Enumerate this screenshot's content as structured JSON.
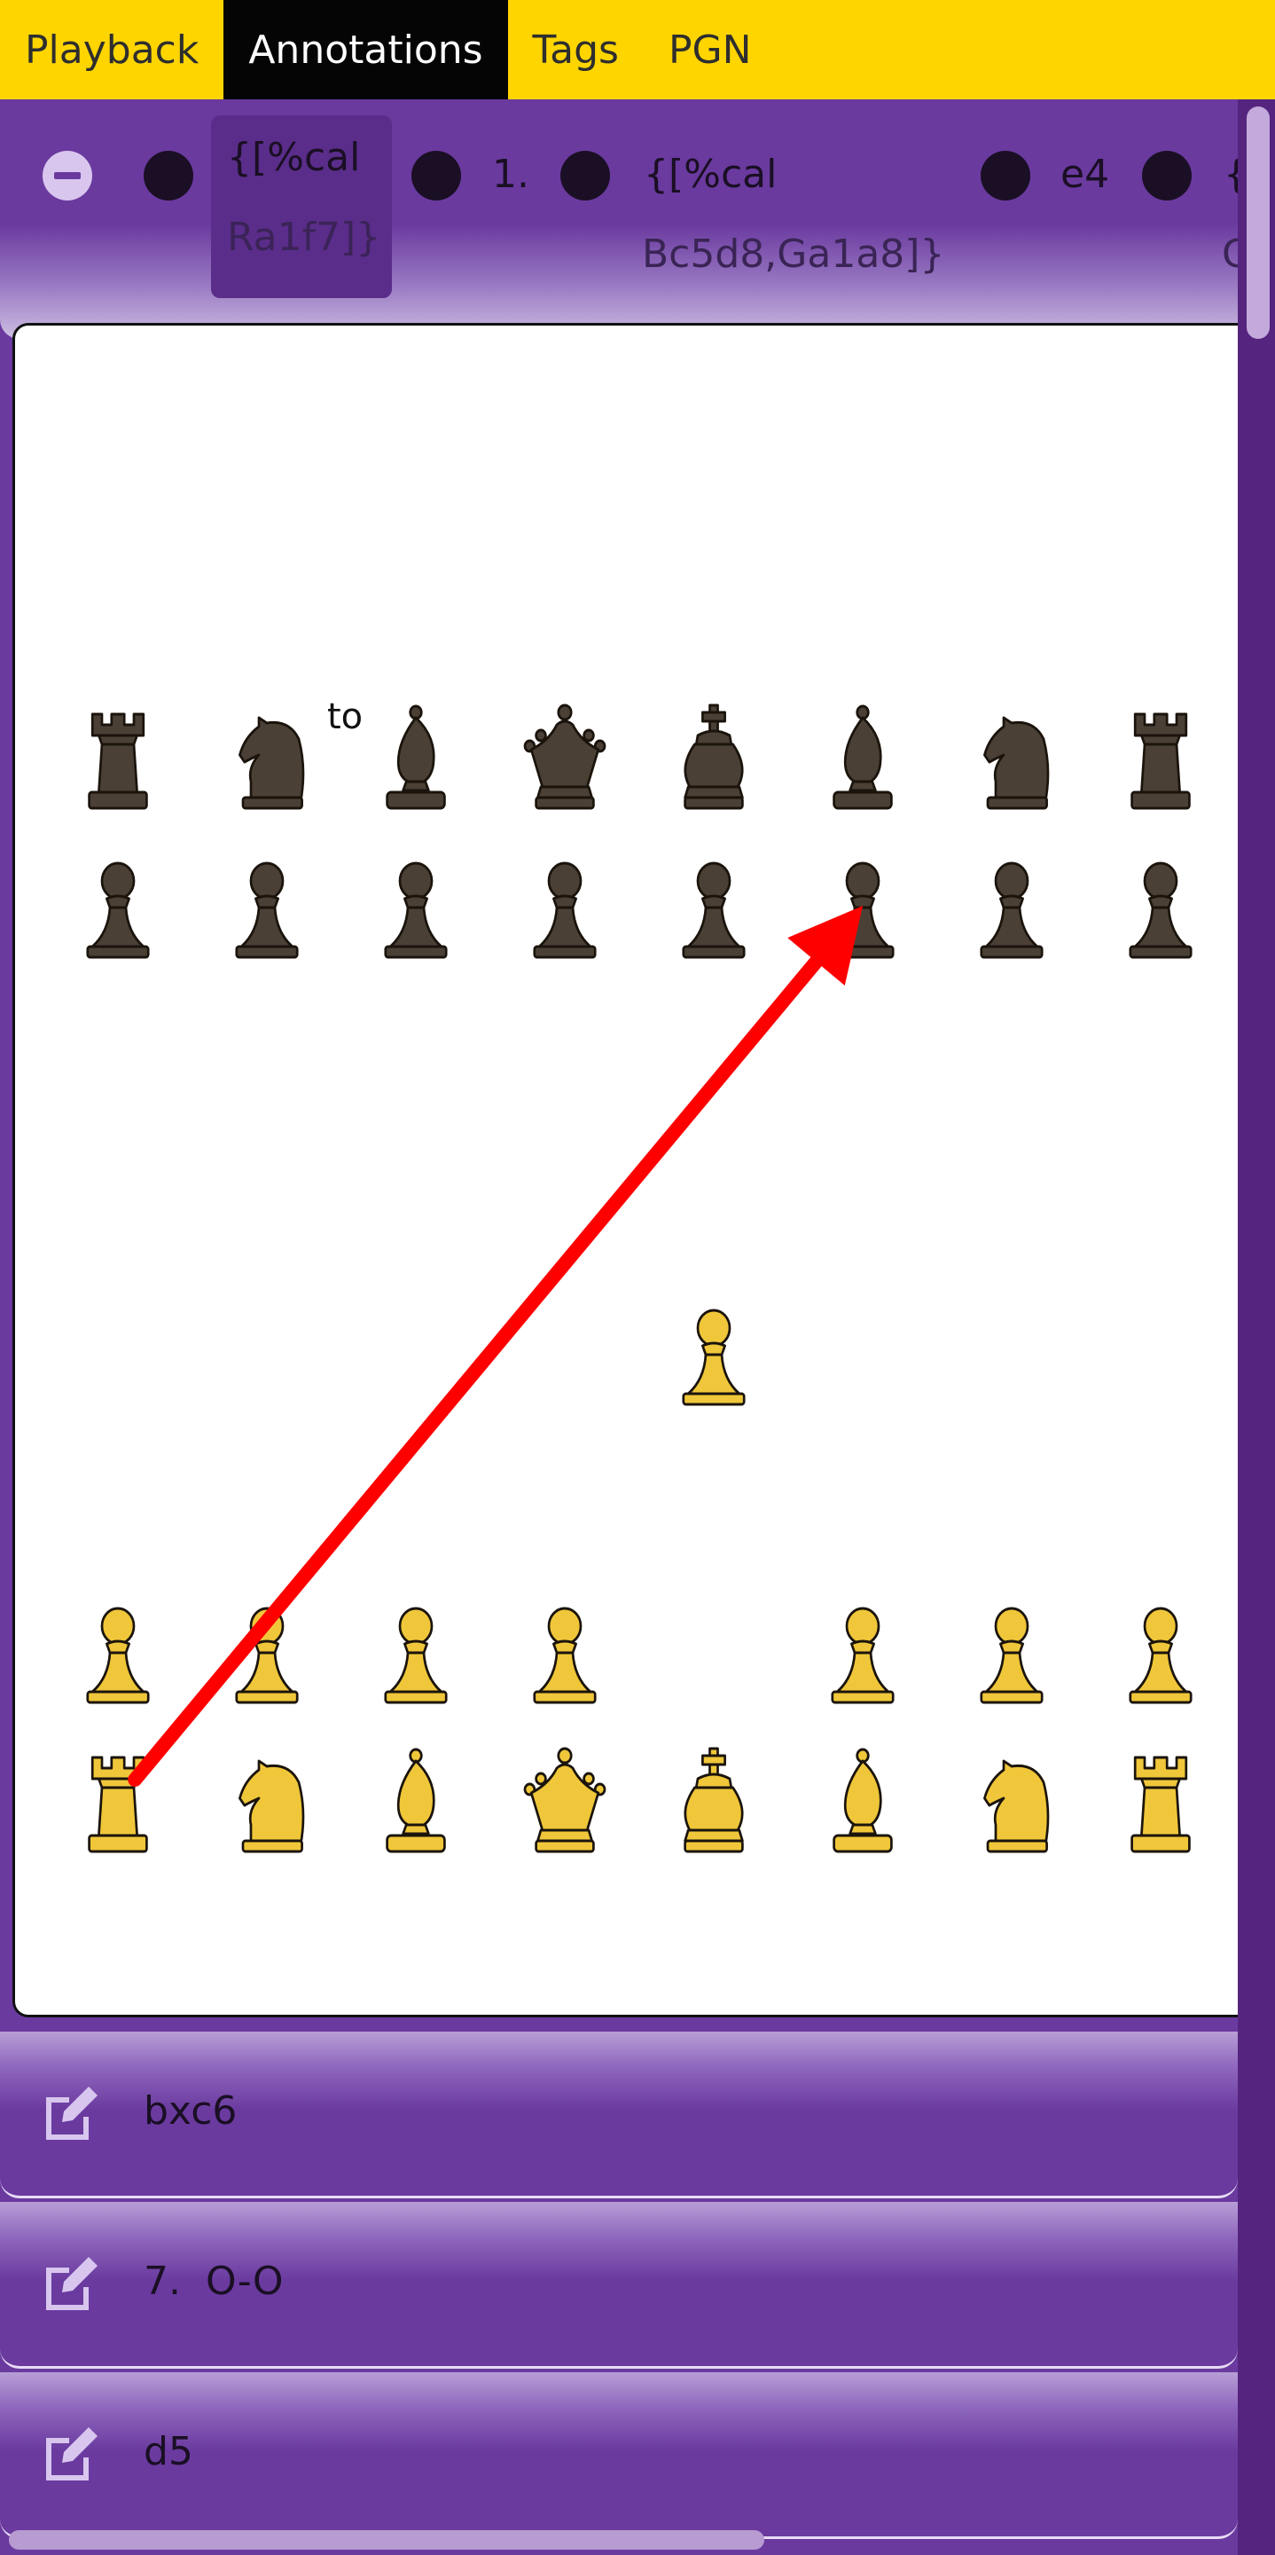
{
  "tabs": [
    {
      "label": "Playback",
      "active": false
    },
    {
      "label": "Annotations",
      "active": true
    },
    {
      "label": "Tags",
      "active": false
    },
    {
      "label": "PGN",
      "active": false
    }
  ],
  "move_strip": {
    "items": [
      {
        "line1": "{[%cal",
        "line2": "Ra1f7]}"
      },
      {
        "text": "1."
      },
      {
        "line1": "{[%cal",
        "line2": "Bc5d8,Ga1a8]}"
      },
      {
        "text": "e4"
      },
      {
        "line1": "{",
        "line2": "C"
      }
    ]
  },
  "board": {
    "caption": "to",
    "arrow": {
      "from": "a1",
      "to": "f7",
      "color": "#ff0000"
    },
    "pieces": {
      "black_back": [
        "rook",
        "knight",
        "bishop",
        "queen",
        "king",
        "bishop",
        "knight",
        "rook"
      ],
      "black_pawns": [
        "a7",
        "b7",
        "c7",
        "d7",
        "e7",
        "f7",
        "g7",
        "h7"
      ],
      "white_pawns": [
        "a2",
        "b2",
        "c2",
        "d2",
        "f2",
        "g2",
        "h2"
      ],
      "white_advanced_pawn": "e4",
      "white_back": [
        "rook",
        "knight",
        "bishop",
        "queen",
        "king",
        "bishop",
        "knight",
        "rook"
      ]
    },
    "colors": {
      "white_piece": "#f0c73a",
      "black_piece": "#4a4036",
      "outline": "#1b140c"
    }
  },
  "moves": [
    {
      "text": "bxc6"
    },
    {
      "text": "7.  O-O"
    },
    {
      "text": "d5"
    }
  ],
  "icons": {
    "edit": "edit-pencil-icon",
    "remove": "minus-circle-icon",
    "bullet": "dot-icon"
  }
}
